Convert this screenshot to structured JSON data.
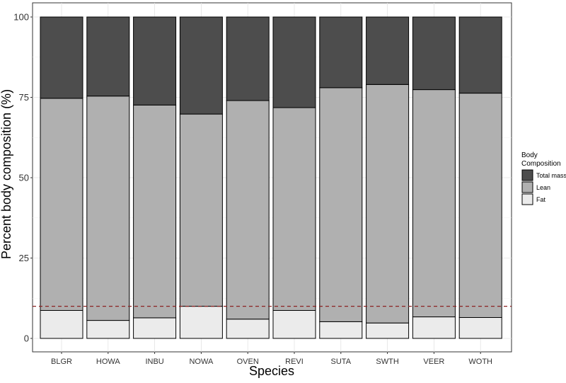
{
  "chart_data": {
    "type": "bar",
    "stacked": true,
    "xlabel": "Species",
    "ylabel": "Percent body composition (%)",
    "ylim": [
      0,
      100
    ],
    "yticks": [
      0,
      25,
      50,
      75,
      100
    ],
    "categories": [
      "BLGR",
      "HOWA",
      "INBU",
      "NOWA",
      "OVEN",
      "REVI",
      "SUTA",
      "SWTH",
      "VEER",
      "WOTH"
    ],
    "series": [
      {
        "name": "Fat",
        "color": "#ebebeb",
        "values": [
          8.7,
          5.6,
          6.4,
          10.0,
          6.0,
          8.7,
          5.2,
          4.8,
          6.7,
          6.5
        ]
      },
      {
        "name": "Lean",
        "color": "#b0b0b0",
        "values": [
          66.0,
          69.8,
          66.2,
          59.8,
          68.0,
          63.1,
          72.8,
          74.2,
          70.7,
          69.8
        ]
      },
      {
        "name": "Total mass",
        "color": "#4d4d4d",
        "values": [
          25.3,
          24.6,
          27.4,
          30.2,
          26.0,
          28.2,
          22.0,
          21.0,
          22.6,
          23.7
        ]
      }
    ],
    "reference_line": {
      "y": 10,
      "style": "dashed",
      "color": "#8b2323"
    },
    "grid": true,
    "legend": {
      "title_line1": "Body",
      "title_line2": "Composition",
      "placement": "right",
      "order": [
        "Total mass",
        "Lean",
        "Fat"
      ]
    }
  }
}
